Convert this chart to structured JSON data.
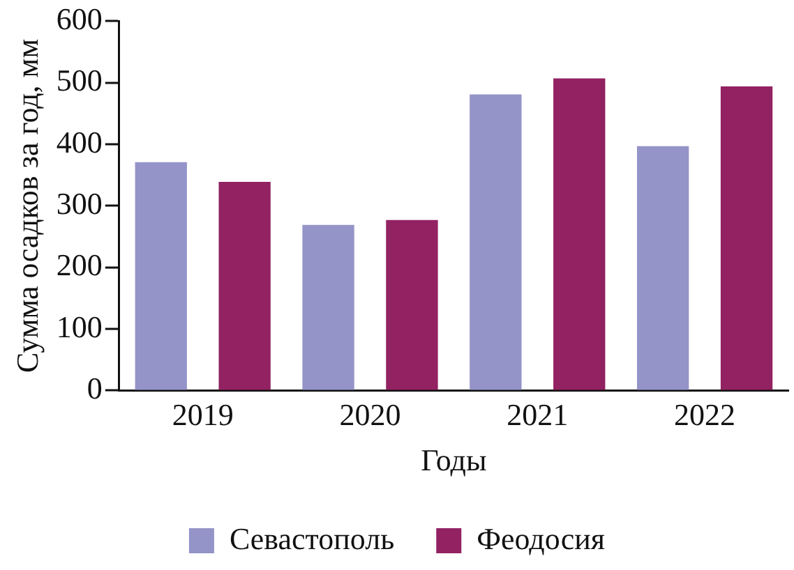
{
  "chart_data": {
    "type": "bar",
    "xlabel": "Годы",
    "ylabel": "Сумма осадков за год, мм",
    "categories": [
      "2019",
      "2020",
      "2021",
      "2022"
    ],
    "series": [
      {
        "name": "Севастополь",
        "color": "#9494c8",
        "values": [
          371,
          269,
          481,
          397
        ]
      },
      {
        "name": "Феодосия",
        "color": "#922262",
        "values": [
          339,
          277,
          507,
          494
        ]
      }
    ],
    "ylim": [
      0,
      600
    ],
    "yticks": [
      0,
      100,
      200,
      300,
      400,
      500,
      600
    ],
    "grid": false,
    "legend": "bottom"
  }
}
